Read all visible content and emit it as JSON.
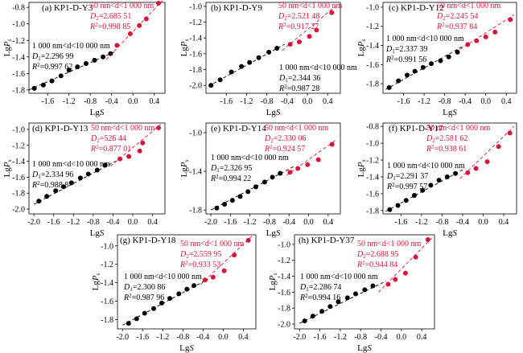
{
  "colors": {
    "black_series": "#000000",
    "red_series": "#d6163a",
    "axis": "#000000"
  },
  "chart_data": [
    {
      "type": "scatter",
      "title": "(a) KP1-D-Y3",
      "xlabel": "LgS",
      "ylabel": "LgPs",
      "xticks": [
        "-1.6",
        "-1.2",
        "-0.8",
        "-0.4",
        "0.0",
        "0.4"
      ],
      "yticks": [
        "-1.8",
        "-1.6",
        "-1.4",
        "-1.2",
        "-1.0",
        "-0.8"
      ],
      "xlim": [
        -1.95,
        0.6
      ],
      "ylim": [
        -1.84,
        -0.74
      ],
      "series": [
        {
          "name": "1 000 nm<d<10 000 nm",
          "color": "#000000",
          "x": [
            -1.85,
            -1.68,
            -1.52,
            -1.35,
            -1.2,
            -1.04,
            -0.88,
            -0.72,
            -0.56,
            -0.42
          ],
          "y": [
            -1.78,
            -1.74,
            -1.69,
            -1.63,
            -1.56,
            -1.52,
            -1.48,
            -1.44,
            -1.4,
            -1.36
          ],
          "fit": [
            [
              -1.95,
              -1.8
            ],
            [
              -0.35,
              -1.34
            ]
          ],
          "label_lines": [
            "1 000 nm<d<10 000 nm",
            "D1=2.296 99",
            "R2=0.997 62"
          ]
        },
        {
          "name": "50 nm<d<1 000 nm",
          "color": "#d6163a",
          "x": [
            -0.3,
            -0.05,
            0.12,
            0.25,
            0.48
          ],
          "y": [
            -1.26,
            -1.12,
            -1.02,
            -0.94,
            -0.75
          ],
          "fit": [
            [
              -0.5,
              -1.43
            ],
            [
              0.55,
              -0.72
            ]
          ],
          "label_lines": [
            "50 nm<d<1 000 nm",
            "D2=2.685 51",
            "R2=0.998 85"
          ]
        }
      ]
    },
    {
      "type": "scatter",
      "title": "(b) KP1-D-Y9",
      "xlabel": "LgS",
      "ylabel": "LgPs",
      "xticks": [
        "-1.6",
        "-1.2",
        "-0.8",
        "-0.4",
        "0.0",
        "0.4"
      ],
      "yticks": [
        "-2.0",
        "-1.8",
        "-1.6",
        "-1.4",
        "-1.2",
        "-1.0"
      ],
      "xlim": [
        -2.0,
        0.65
      ],
      "ylim": [
        -2.1,
        -0.95
      ],
      "series": [
        {
          "name": "1 000 nm<d<10 000 nm",
          "color": "#000000",
          "x": [
            -1.9,
            -1.72,
            -1.5,
            -1.3,
            -1.14,
            -0.96,
            -0.76,
            -0.6
          ],
          "y": [
            -2.0,
            -1.93,
            -1.83,
            -1.76,
            -1.71,
            -1.65,
            -1.58,
            -1.53
          ],
          "fit": [
            [
              -1.95,
              -2.01
            ],
            [
              -0.45,
              -1.48
            ]
          ],
          "label_lines": [
            "1 000 nm<d<10 000 nm",
            "D1=2.344 36",
            "R2=0.987 28"
          ]
        },
        {
          "name": "50 nm<d<1 000 nm",
          "color": "#d6163a",
          "x": [
            -0.34,
            -0.16,
            0.04,
            0.18,
            0.48
          ],
          "y": [
            -1.48,
            -1.45,
            -1.38,
            -1.3,
            -1.08
          ],
          "fit": [
            [
              -0.5,
              -1.56
            ],
            [
              0.55,
              -1.0
            ]
          ],
          "label_lines": [
            "50 nm<d<1 000 nm",
            "D2=2.521 48",
            "R2=0.917 27"
          ]
        }
      ]
    },
    {
      "type": "scatter",
      "title": "(c) KP1-D-Y12",
      "xlabel": "LgS",
      "ylabel": "LgPs",
      "xticks": [
        "-1.6",
        "-1.2",
        "-0.8",
        "-0.4",
        "0.0",
        "0.4"
      ],
      "yticks": [
        "-1.8",
        "-1.6",
        "-1.4",
        "-1.2",
        "-1.0"
      ],
      "xlim": [
        -2.0,
        0.6
      ],
      "ylim": [
        -1.9,
        -0.95
      ],
      "series": [
        {
          "name": "1 000 nm<d<10 000 nm",
          "color": "#000000",
          "x": [
            -1.88,
            -1.7,
            -1.53,
            -1.38,
            -1.22,
            -1.06,
            -0.88,
            -0.72,
            -0.55
          ],
          "y": [
            -1.84,
            -1.77,
            -1.71,
            -1.67,
            -1.63,
            -1.59,
            -1.56,
            -1.52,
            -1.47
          ],
          "fit": [
            [
              -1.95,
              -1.86
            ],
            [
              -0.45,
              -1.41
            ]
          ],
          "label_lines": [
            "1 000 nm<d<10 000 nm",
            "D1=2.337 39",
            "R2=0.991 56"
          ]
        },
        {
          "name": "50 nm<d<1 000 nm",
          "color": "#d6163a",
          "x": [
            -0.35,
            -0.18,
            0.0,
            0.18,
            0.48
          ],
          "y": [
            -1.39,
            -1.35,
            -1.31,
            -1.26,
            -1.13
          ],
          "fit": [
            [
              -0.5,
              -1.44
            ],
            [
              0.55,
              -1.08
            ]
          ],
          "label_lines": [
            "50 nm<d<1 000 nm",
            "D2=2.245 54",
            "R2=0.937 84"
          ]
        }
      ]
    },
    {
      "type": "scatter",
      "title": "(d) KP1-D-Y13",
      "xlabel": "LgS",
      "ylabel": "LgPs",
      "xticks": [
        "-2.0",
        "-1.6",
        "-1.2",
        "-0.8",
        "-0.4",
        "0.0",
        "0.4"
      ],
      "yticks": [
        "-2.0",
        "-1.8",
        "-1.6",
        "-1.4",
        "-1.2",
        "-1.0"
      ],
      "xlim": [
        -2.1,
        0.65
      ],
      "ylim": [
        -2.06,
        -0.92
      ],
      "series": [
        {
          "name": "1 000 nm<d<10 000 nm",
          "color": "#000000",
          "x": [
            -1.9,
            -1.74,
            -1.56,
            -1.4,
            -1.24,
            -1.06,
            -0.9,
            -0.72,
            -0.56
          ],
          "y": [
            -1.9,
            -1.84,
            -1.77,
            -1.72,
            -1.67,
            -1.61,
            -1.56,
            -1.51,
            -1.45
          ],
          "fit": [
            [
              -2.0,
              -1.94
            ],
            [
              -0.35,
              -1.4
            ]
          ],
          "label_lines": [
            "1 000 nm<d<10 000 nm",
            "D1=2.334 96",
            "R2=0.988 8"
          ]
        },
        {
          "name": "50 nm<d<1 000 nm",
          "color": "#d6163a",
          "x": [
            -0.26,
            -0.08,
            0.14,
            0.2,
            0.52
          ],
          "y": [
            -1.37,
            -1.34,
            -1.27,
            -1.17,
            -0.98
          ],
          "fit": [
            [
              -0.45,
              -1.46
            ],
            [
              0.6,
              -0.92
            ]
          ],
          "label_lines": [
            "50 nm<d<1 000 nm",
            "D2=526 44",
            "R2=0.877 01"
          ]
        }
      ]
    },
    {
      "type": "scatter",
      "title": "(e) KP1-D-Y14",
      "xlabel": "LgS",
      "ylabel": "LgPs",
      "xticks": [
        "-2.0",
        "-1.6",
        "-1.2",
        "-0.8",
        "-0.4",
        "0.0",
        "0.4"
      ],
      "yticks": [
        "-1.8",
        "-1.4",
        "-1.0"
      ],
      "xlim": [
        -2.1,
        0.65
      ],
      "ylim": [
        -1.84,
        -0.9
      ],
      "series": [
        {
          "name": "1 000 nm<d<10 000 nm",
          "color": "#000000",
          "x": [
            -1.88,
            -1.72,
            -1.56,
            -1.4,
            -1.24,
            -1.08,
            -0.9,
            -0.74,
            -0.58
          ],
          "y": [
            -1.78,
            -1.74,
            -1.7,
            -1.66,
            -1.61,
            -1.56,
            -1.51,
            -1.46,
            -1.42
          ],
          "fit": [
            [
              -2.0,
              -1.8
            ],
            [
              -0.3,
              -1.35
            ]
          ],
          "label_lines": [
            "1 000 nm<d<10 000 nm",
            "D1=2.326 95",
            "R2=0.994 22"
          ]
        },
        {
          "name": "50 nm<d<1 000 nm",
          "color": "#d6163a",
          "x": [
            -0.38,
            -0.22,
            -0.02,
            0.2,
            0.48
          ],
          "y": [
            -1.41,
            -1.37,
            -1.33,
            -1.28,
            -1.12
          ],
          "fit": [
            [
              -0.45,
              -1.44
            ],
            [
              0.55,
              -1.08
            ]
          ],
          "label_lines": [
            "50 nm<d<1 000 nm",
            "D2=2.330 06",
            "R2=0.924 57"
          ]
        }
      ]
    },
    {
      "type": "scatter",
      "title": "(f) KP1-D-Y17",
      "xlabel": "LgS",
      "ylabel": "LgPs",
      "xticks": [
        "-1.6",
        "-1.2",
        "-0.8",
        "-0.4",
        "0.0",
        "0.4"
      ],
      "yticks": [
        "-1.8",
        "-1.6",
        "-1.4",
        "-1.2",
        "-1.0",
        "-0.8"
      ],
      "xlim": [
        -1.95,
        0.65
      ],
      "ylim": [
        -1.84,
        -0.76
      ],
      "series": [
        {
          "name": "1 000 nm<d<10 000 nm",
          "color": "#000000",
          "x": [
            -1.82,
            -1.66,
            -1.5,
            -1.34,
            -1.18,
            -1.02,
            -0.86,
            -0.7,
            -0.54
          ],
          "y": [
            -1.79,
            -1.74,
            -1.68,
            -1.62,
            -1.56,
            -1.5,
            -1.44,
            -1.4,
            -1.36
          ],
          "fit": [
            [
              -1.9,
              -1.81
            ],
            [
              -0.35,
              -1.3
            ]
          ],
          "label_lines": [
            "1 000 nm<d<10 000 nm",
            "D1=2.291 37",
            "R2=0.997 57"
          ]
        },
        {
          "name": "50 nm<d<1 000 nm",
          "color": "#d6163a",
          "x": [
            -0.3,
            -0.14,
            0.08,
            0.3,
            0.52
          ],
          "y": [
            -1.35,
            -1.3,
            -1.22,
            -1.04,
            -0.88
          ],
          "fit": [
            [
              -0.45,
              -1.42
            ],
            [
              0.6,
              -0.8
            ]
          ],
          "label_lines": [
            "50 nm<d<1 000 nm",
            "D2=2.581 62",
            "R2=0.938 61"
          ]
        }
      ]
    },
    {
      "type": "scatter",
      "title": "(g) KP1-D-Y18",
      "xlabel": "LgS",
      "ylabel": "LgPs",
      "xticks": [
        "-2.0",
        "-1.6",
        "-1.2",
        "-0.8",
        "-0.4",
        "0.0",
        "0.4"
      ],
      "yticks": [
        "-1.8",
        "-1.6",
        "-1.4",
        "-1.2",
        "-1.0"
      ],
      "xlim": [
        -2.1,
        0.65
      ],
      "ylim": [
        -1.9,
        -0.88
      ],
      "series": [
        {
          "name": "1 000 nm<d<10 000 nm",
          "color": "#000000",
          "x": [
            -1.88,
            -1.72,
            -1.56,
            -1.38,
            -1.22,
            -1.06,
            -0.88,
            -0.72,
            -0.58
          ],
          "y": [
            -1.84,
            -1.79,
            -1.73,
            -1.68,
            -1.62,
            -1.57,
            -1.52,
            -1.47,
            -1.43
          ],
          "fit": [
            [
              -2.0,
              -1.86
            ],
            [
              -0.3,
              -1.36
            ]
          ],
          "label_lines": [
            "1 000 nm<d<10 000 nm",
            "D1=2.300 86",
            "R2=0.987 96"
          ]
        },
        {
          "name": "50 nm<d<1 000 nm",
          "color": "#d6163a",
          "x": [
            -0.36,
            -0.2,
            0.02,
            0.22,
            0.5
          ],
          "y": [
            -1.37,
            -1.34,
            -1.27,
            -1.1,
            -0.94
          ],
          "fit": [
            [
              -0.45,
              -1.42
            ],
            [
              0.6,
              -0.88
            ]
          ],
          "label_lines": [
            "50 nm<d<1 000 nm",
            "D2=2.559 95",
            "R2=0.933 53"
          ]
        }
      ]
    },
    {
      "type": "scatter",
      "title": "(h) KP1-D-Y37",
      "xlabel": "LgS",
      "ylabel": "LgPs",
      "xticks": [
        "-2.0",
        "-1.6",
        "-1.2",
        "-0.8",
        "-0.4",
        "0.0",
        "0.4"
      ],
      "yticks": [
        "-2.0",
        "-1.8",
        "-1.6",
        "-1.4",
        "-1.2",
        "-1.0"
      ],
      "xlim": [
        -2.1,
        0.65
      ],
      "ylim": [
        -2.06,
        -0.88
      ],
      "series": [
        {
          "name": "1 000 nm<d<10 000 nm",
          "color": "#000000",
          "x": [
            -1.9,
            -1.74,
            -1.56,
            -1.4,
            -1.24,
            -1.06,
            -0.9,
            -0.72,
            -0.56
          ],
          "y": [
            -1.96,
            -1.9,
            -1.84,
            -1.78,
            -1.72,
            -1.67,
            -1.62,
            -1.57,
            -1.52
          ],
          "fit": [
            [
              -2.0,
              -1.99
            ],
            [
              -0.3,
              -1.46
            ]
          ],
          "label_lines": [
            "1 000 nm<d<10 000 nm",
            "D1=2.286 74",
            "R2=0.994 16"
          ]
        },
        {
          "name": "50 nm<d<1 000 nm",
          "color": "#d6163a",
          "x": [
            -0.26,
            -0.12,
            0.08,
            0.28,
            0.52
          ],
          "y": [
            -1.5,
            -1.44,
            -1.36,
            -1.16,
            -0.94
          ],
          "fit": [
            [
              -0.45,
              -1.6
            ],
            [
              0.6,
              -0.92
            ]
          ],
          "label_lines": [
            "50 nm<d<1 000 nm",
            "D2=2.688 95",
            "R2=0.944 84"
          ]
        }
      ]
    }
  ]
}
